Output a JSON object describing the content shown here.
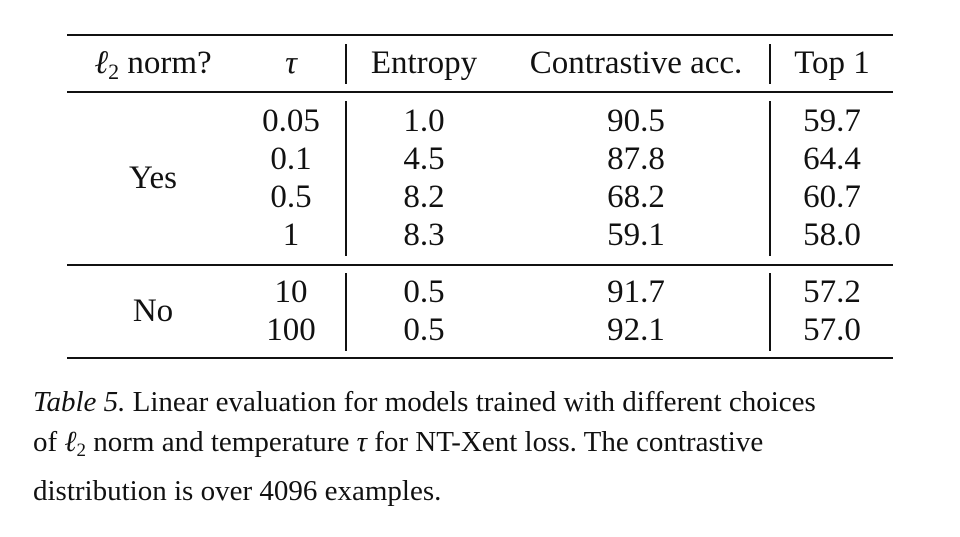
{
  "table": {
    "header": {
      "norm_prefix": "ℓ",
      "norm_sub": "2",
      "norm_suffix": " norm?",
      "tau": "τ",
      "entropy": "Entropy",
      "contrastive_acc": "Contrastive acc.",
      "top1": "Top 1"
    },
    "groups": [
      {
        "label": "Yes",
        "rows": [
          {
            "tau": "0.05",
            "entropy": "1.0",
            "contrastive_acc": "90.5",
            "top1": "59.7"
          },
          {
            "tau": "0.1",
            "entropy": "4.5",
            "contrastive_acc": "87.8",
            "top1": "64.4"
          },
          {
            "tau": "0.5",
            "entropy": "8.2",
            "contrastive_acc": "68.2",
            "top1": "60.7"
          },
          {
            "tau": "1",
            "entropy": "8.3",
            "contrastive_acc": "59.1",
            "top1": "58.0"
          }
        ]
      },
      {
        "label": "No",
        "rows": [
          {
            "tau": "10",
            "entropy": "0.5",
            "contrastive_acc": "91.7",
            "top1": "57.2"
          },
          {
            "tau": "100",
            "entropy": "0.5",
            "contrastive_acc": "92.1",
            "top1": "57.0"
          }
        ]
      }
    ]
  },
  "caption": {
    "label": "Table 5.",
    "line1_rest": " Linear evaluation for models trained with different choices",
    "line2_a": "of ",
    "line2_ell": "ℓ",
    "line2_sub": "2",
    "line2_b": " norm and temperature ",
    "line2_tau": "τ",
    "line2_c": " for NT-Xent loss. The contrastive",
    "line3": "distribution is over 4096 examples."
  }
}
